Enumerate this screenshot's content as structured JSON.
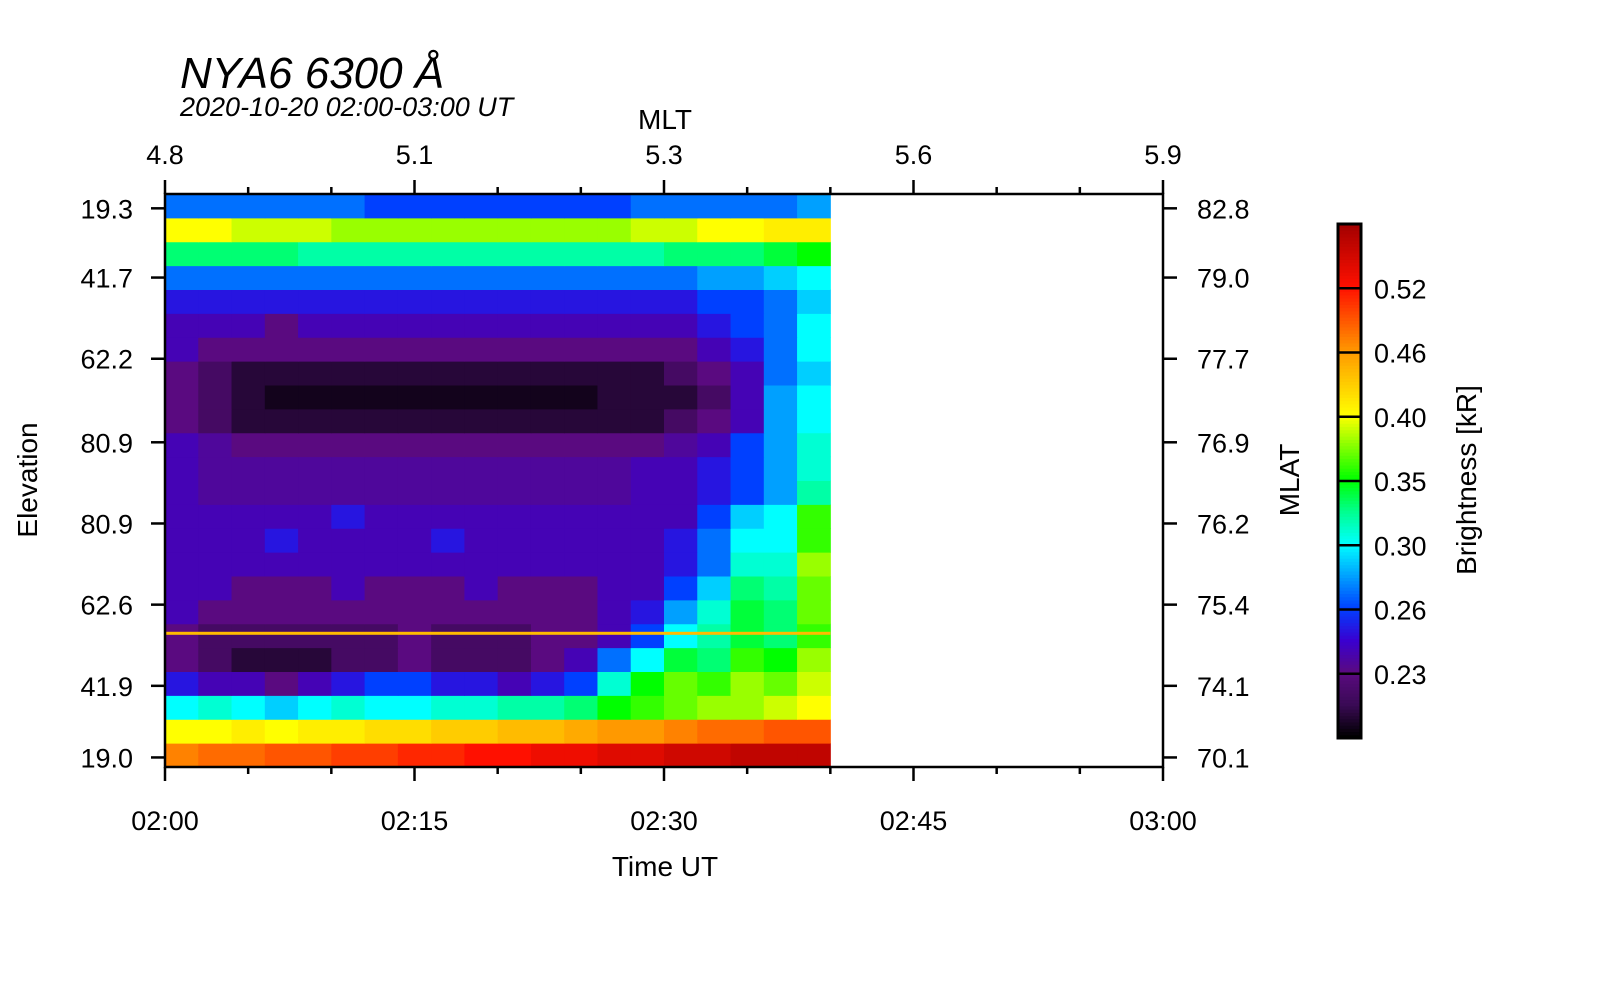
{
  "chart_data": {
    "type": "heatmap",
    "title": "NYA6 6300 Å",
    "subtitle": "2020-10-20 02:00-03:00 UT",
    "xlabel": "Time UT",
    "x_top_label": "MLT",
    "ylabel": "Elevation",
    "y_right_label": "MLAT",
    "colorbar_label": "Brightness [kR]",
    "x_range_minutes": [
      0,
      60
    ],
    "x_ticks": [
      {
        "min": 0,
        "label": "02:00"
      },
      {
        "min": 15,
        "label": "02:15"
      },
      {
        "min": 30,
        "label": "02:30"
      },
      {
        "min": 45,
        "label": "02:45"
      },
      {
        "min": 60,
        "label": "03:00"
      }
    ],
    "x_minor_step_minutes": 5,
    "x_top_ticks": [
      "4.8",
      "5.1",
      "5.3",
      "5.6",
      "5.9"
    ],
    "y_range_rows": [
      0,
      24
    ],
    "y_ticks": [
      {
        "row": 0.4,
        "left": "19.0",
        "right": "70.1"
      },
      {
        "row": 3.4,
        "left": "41.9",
        "right": "74.1"
      },
      {
        "row": 6.8,
        "left": "62.6",
        "right": "75.4"
      },
      {
        "row": 10.2,
        "left": "80.9",
        "right": "76.2"
      },
      {
        "row": 13.6,
        "left": "80.9",
        "right": "76.9"
      },
      {
        "row": 17.1,
        "left": "62.2",
        "right": "77.7"
      },
      {
        "row": 20.5,
        "left": "41.7",
        "right": "79.0"
      },
      {
        "row": 23.4,
        "left": "19.3",
        "right": "82.8"
      }
    ],
    "data_time_extent_minutes": [
      0,
      40
    ],
    "row_order": "bottom-to-top",
    "bright_line": {
      "row": 5.6,
      "value": 0.44
    },
    "colorbar": {
      "tick_labels": [
        "0.23",
        "0.26",
        "0.30",
        "0.35",
        "0.40",
        "0.46",
        "0.52"
      ],
      "levels": [
        0.2,
        0.23,
        0.26,
        0.3,
        0.35,
        0.4,
        0.46,
        0.52,
        0.58
      ],
      "stops": [
        {
          "u": 0,
          "color": "#000000"
        },
        {
          "u": 0.5,
          "color": "#3a0a55"
        },
        {
          "u": 1,
          "color": "#5a0a80"
        },
        {
          "u": 1.5,
          "color": "#3a00d0"
        },
        {
          "u": 2,
          "color": "#0040ff"
        },
        {
          "u": 3,
          "color": "#00ffff"
        },
        {
          "u": 3.5,
          "color": "#00ff90"
        },
        {
          "u": 4,
          "color": "#00ff00"
        },
        {
          "u": 5,
          "color": "#ffff00"
        },
        {
          "u": 6,
          "color": "#ff9900"
        },
        {
          "u": 7,
          "color": "#ff1000"
        },
        {
          "u": 8,
          "color": "#a00000"
        }
      ]
    },
    "values": [
      [
        0.47,
        0.48,
        0.48,
        0.49,
        0.49,
        0.5,
        0.5,
        0.51,
        0.51,
        0.52,
        0.52,
        0.53,
        0.53,
        0.54,
        0.54,
        0.55,
        0.55,
        0.56,
        0.56,
        0.56
      ],
      [
        0.4,
        0.4,
        0.41,
        0.4,
        0.41,
        0.41,
        0.42,
        0.42,
        0.43,
        0.43,
        0.44,
        0.44,
        0.45,
        0.46,
        0.46,
        0.47,
        0.48,
        0.48,
        0.49,
        0.49
      ],
      [
        0.3,
        0.31,
        0.3,
        0.29,
        0.3,
        0.31,
        0.3,
        0.3,
        0.31,
        0.31,
        0.32,
        0.32,
        0.33,
        0.35,
        0.36,
        0.37,
        0.38,
        0.38,
        0.39,
        0.4
      ],
      [
        0.25,
        0.24,
        0.24,
        0.23,
        0.24,
        0.25,
        0.26,
        0.26,
        0.25,
        0.25,
        0.24,
        0.25,
        0.26,
        0.31,
        0.35,
        0.37,
        0.36,
        0.38,
        0.37,
        0.39
      ],
      [
        0.23,
        0.22,
        0.21,
        0.21,
        0.21,
        0.22,
        0.22,
        0.23,
        0.22,
        0.22,
        0.22,
        0.23,
        0.24,
        0.27,
        0.3,
        0.34,
        0.33,
        0.36,
        0.35,
        0.38
      ],
      [
        0.23,
        0.22,
        0.22,
        0.22,
        0.22,
        0.22,
        0.22,
        0.23,
        0.22,
        0.22,
        0.22,
        0.23,
        0.23,
        0.24,
        0.26,
        0.3,
        0.32,
        0.34,
        0.33,
        0.36
      ],
      [
        0.24,
        0.23,
        0.23,
        0.23,
        0.23,
        0.23,
        0.23,
        0.23,
        0.23,
        0.23,
        0.23,
        0.23,
        0.23,
        0.24,
        0.25,
        0.28,
        0.31,
        0.34,
        0.33,
        0.37
      ],
      [
        0.24,
        0.24,
        0.23,
        0.23,
        0.23,
        0.24,
        0.23,
        0.23,
        0.23,
        0.24,
        0.23,
        0.23,
        0.23,
        0.24,
        0.24,
        0.26,
        0.29,
        0.33,
        0.32,
        0.37
      ],
      [
        0.24,
        0.24,
        0.24,
        0.24,
        0.24,
        0.24,
        0.24,
        0.24,
        0.24,
        0.24,
        0.24,
        0.24,
        0.24,
        0.24,
        0.24,
        0.25,
        0.27,
        0.31,
        0.31,
        0.38
      ],
      [
        0.24,
        0.24,
        0.24,
        0.25,
        0.24,
        0.24,
        0.24,
        0.24,
        0.25,
        0.24,
        0.24,
        0.24,
        0.24,
        0.24,
        0.24,
        0.25,
        0.27,
        0.3,
        0.3,
        0.36
      ],
      [
        0.24,
        0.24,
        0.24,
        0.24,
        0.24,
        0.25,
        0.24,
        0.24,
        0.24,
        0.24,
        0.24,
        0.24,
        0.24,
        0.24,
        0.24,
        0.24,
        0.26,
        0.29,
        0.3,
        0.36
      ],
      [
        0.24,
        0.235,
        0.235,
        0.235,
        0.235,
        0.235,
        0.235,
        0.235,
        0.235,
        0.235,
        0.235,
        0.235,
        0.235,
        0.235,
        0.24,
        0.24,
        0.25,
        0.26,
        0.28,
        0.32
      ],
      [
        0.24,
        0.235,
        0.235,
        0.235,
        0.235,
        0.235,
        0.235,
        0.235,
        0.235,
        0.235,
        0.235,
        0.235,
        0.235,
        0.235,
        0.24,
        0.24,
        0.25,
        0.26,
        0.28,
        0.31
      ],
      [
        0.24,
        0.235,
        0.23,
        0.23,
        0.23,
        0.23,
        0.23,
        0.23,
        0.23,
        0.23,
        0.23,
        0.23,
        0.23,
        0.23,
        0.23,
        0.235,
        0.24,
        0.26,
        0.28,
        0.31
      ],
      [
        0.23,
        0.22,
        0.21,
        0.21,
        0.21,
        0.21,
        0.21,
        0.21,
        0.21,
        0.21,
        0.21,
        0.21,
        0.21,
        0.21,
        0.21,
        0.22,
        0.23,
        0.24,
        0.28,
        0.3
      ],
      [
        0.23,
        0.22,
        0.21,
        0.205,
        0.205,
        0.205,
        0.205,
        0.205,
        0.205,
        0.205,
        0.205,
        0.205,
        0.205,
        0.21,
        0.21,
        0.21,
        0.22,
        0.24,
        0.28,
        0.3
      ],
      [
        0.23,
        0.22,
        0.21,
        0.21,
        0.21,
        0.21,
        0.21,
        0.21,
        0.21,
        0.21,
        0.21,
        0.21,
        0.21,
        0.21,
        0.21,
        0.22,
        0.23,
        0.24,
        0.27,
        0.29
      ],
      [
        0.24,
        0.23,
        0.23,
        0.23,
        0.23,
        0.23,
        0.23,
        0.23,
        0.23,
        0.23,
        0.23,
        0.23,
        0.23,
        0.23,
        0.23,
        0.23,
        0.24,
        0.25,
        0.27,
        0.3
      ],
      [
        0.24,
        0.24,
        0.24,
        0.23,
        0.24,
        0.24,
        0.24,
        0.24,
        0.24,
        0.24,
        0.24,
        0.24,
        0.24,
        0.24,
        0.24,
        0.24,
        0.25,
        0.26,
        0.27,
        0.3
      ],
      [
        0.25,
        0.25,
        0.25,
        0.25,
        0.25,
        0.25,
        0.25,
        0.25,
        0.25,
        0.25,
        0.25,
        0.25,
        0.25,
        0.25,
        0.25,
        0.25,
        0.26,
        0.26,
        0.27,
        0.29
      ],
      [
        0.27,
        0.27,
        0.27,
        0.27,
        0.27,
        0.27,
        0.27,
        0.27,
        0.27,
        0.27,
        0.27,
        0.27,
        0.27,
        0.27,
        0.27,
        0.27,
        0.28,
        0.28,
        0.29,
        0.3
      ],
      [
        0.33,
        0.33,
        0.33,
        0.33,
        0.32,
        0.32,
        0.32,
        0.32,
        0.32,
        0.32,
        0.32,
        0.32,
        0.32,
        0.32,
        0.32,
        0.33,
        0.33,
        0.33,
        0.34,
        0.35
      ],
      [
        0.4,
        0.4,
        0.39,
        0.39,
        0.39,
        0.38,
        0.38,
        0.38,
        0.38,
        0.38,
        0.38,
        0.38,
        0.38,
        0.38,
        0.39,
        0.39,
        0.4,
        0.4,
        0.41,
        0.41
      ],
      [
        0.27,
        0.27,
        0.27,
        0.27,
        0.27,
        0.27,
        0.26,
        0.26,
        0.26,
        0.26,
        0.26,
        0.26,
        0.26,
        0.26,
        0.27,
        0.27,
        0.27,
        0.27,
        0.27,
        0.28
      ]
    ]
  }
}
